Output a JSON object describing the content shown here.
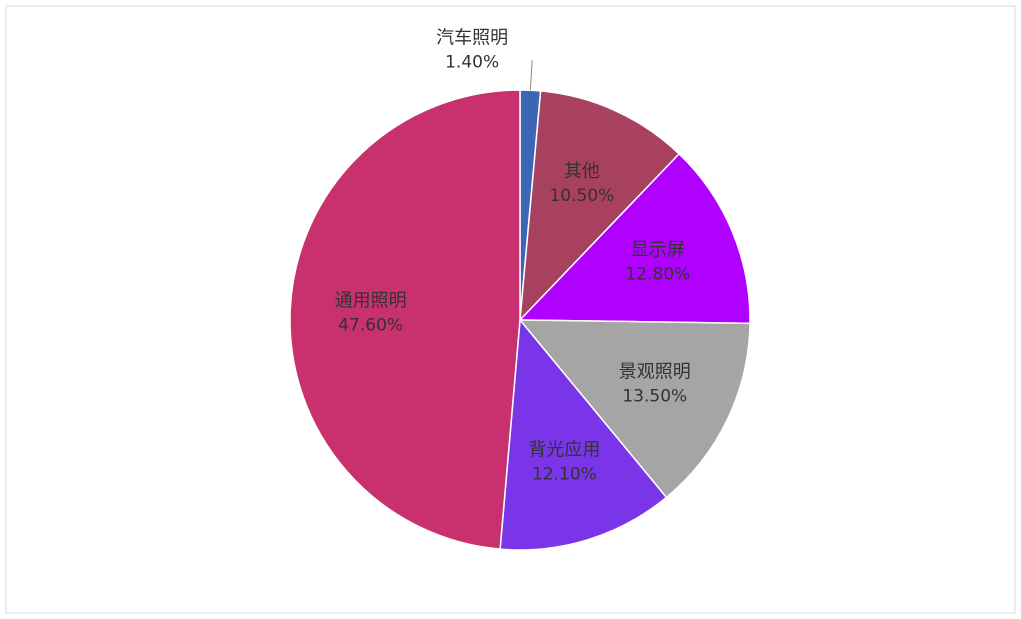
{
  "chart_data": {
    "type": "pie",
    "categories": [
      "汽车照明",
      "其他",
      "显示屏",
      "景观照明",
      "背光应用",
      "通用照明"
    ],
    "values": [
      1.4,
      10.5,
      12.8,
      13.5,
      12.1,
      47.6
    ],
    "value_labels": [
      "1.40%",
      "10.50%",
      "12.80%",
      "13.50%",
      "12.10%",
      "47.60%"
    ],
    "colors": [
      "#3a66b5",
      "#a8405f",
      "#b000ff",
      "#a5a5a5",
      "#7a35e8",
      "#c8306e"
    ]
  }
}
